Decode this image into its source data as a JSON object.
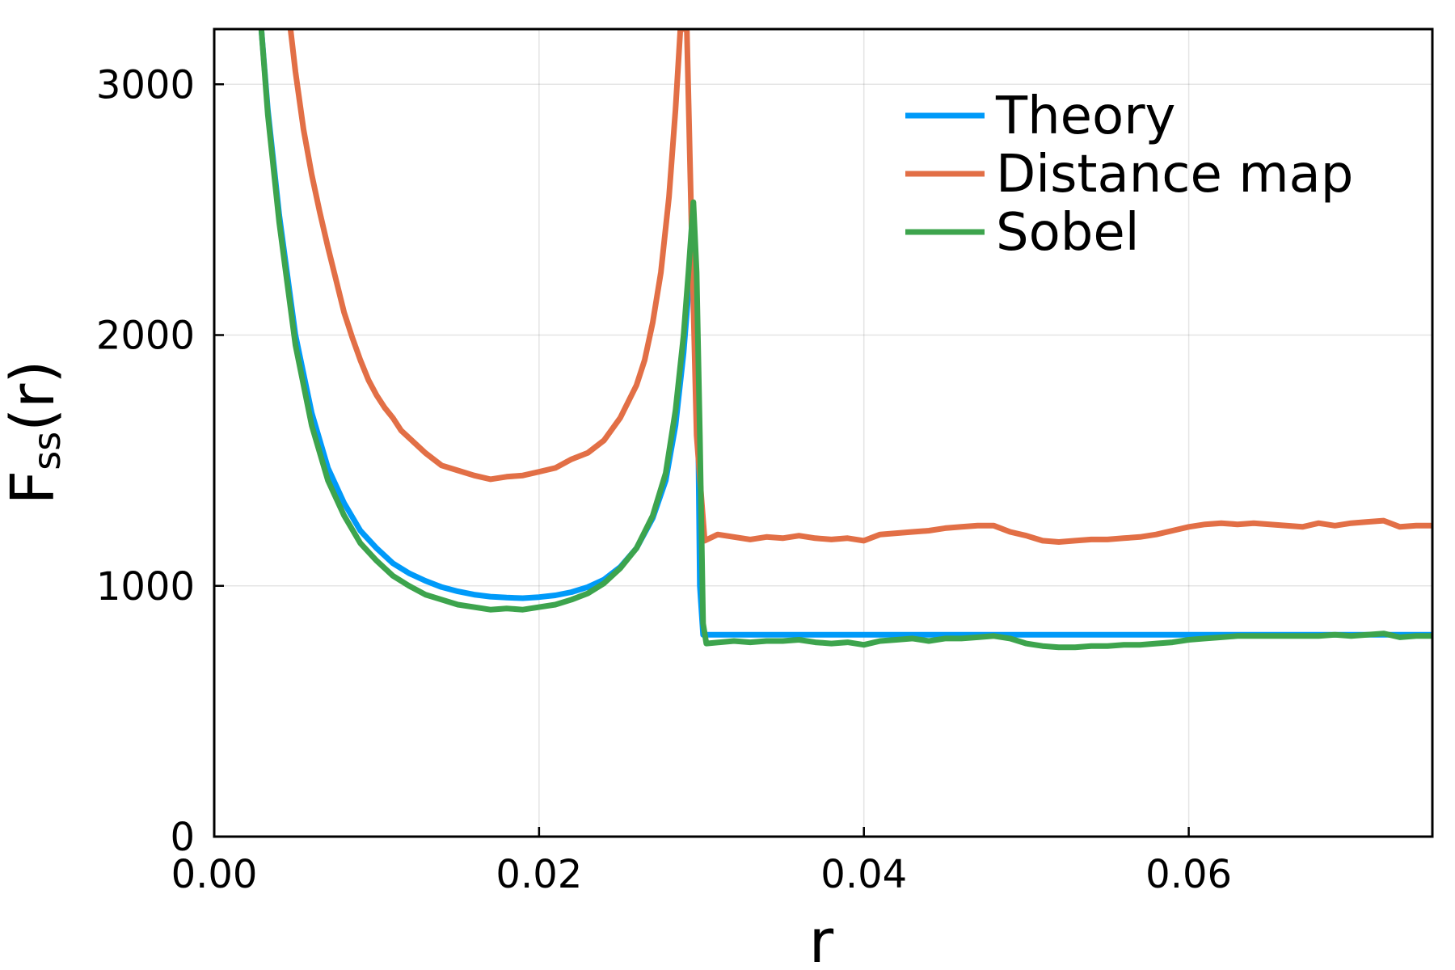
{
  "chart_data": {
    "type": "line",
    "title": "",
    "xlabel": "r",
    "ylabel": "F_ss(r)",
    "ylabel_main": "F",
    "ylabel_sub": "ss",
    "ylabel_tail": "(r)",
    "xlim": [
      0,
      0.075
    ],
    "ylim": [
      0,
      3220
    ],
    "xticks": [
      0,
      0.02,
      0.04,
      0.06
    ],
    "xtick_labels": [
      "0.00",
      "0.02",
      "0.04",
      "0.06"
    ],
    "yticks": [
      0,
      1000,
      2000,
      3000
    ],
    "ytick_labels": [
      "0",
      "1000",
      "2000",
      "3000"
    ],
    "grid": true,
    "legend_position": "top-right",
    "series": [
      {
        "name": "Theory",
        "color": "#009af9",
        "points": [
          [
            0.0029,
            3220
          ],
          [
            0.0033,
            2900
          ],
          [
            0.004,
            2480
          ],
          [
            0.005,
            2000
          ],
          [
            0.006,
            1690
          ],
          [
            0.007,
            1470
          ],
          [
            0.008,
            1330
          ],
          [
            0.009,
            1220
          ],
          [
            0.01,
            1150
          ],
          [
            0.011,
            1090
          ],
          [
            0.012,
            1050
          ],
          [
            0.013,
            1020
          ],
          [
            0.014,
            995
          ],
          [
            0.015,
            978
          ],
          [
            0.016,
            965
          ],
          [
            0.017,
            957
          ],
          [
            0.018,
            953
          ],
          [
            0.019,
            951
          ],
          [
            0.02,
            955
          ],
          [
            0.021,
            962
          ],
          [
            0.022,
            975
          ],
          [
            0.023,
            995
          ],
          [
            0.024,
            1025
          ],
          [
            0.025,
            1075
          ],
          [
            0.026,
            1150
          ],
          [
            0.027,
            1270
          ],
          [
            0.0278,
            1420
          ],
          [
            0.0284,
            1640
          ],
          [
            0.0289,
            1930
          ],
          [
            0.0293,
            2250
          ],
          [
            0.0297,
            2180
          ],
          [
            0.0299,
            1000
          ],
          [
            0.0301,
            805
          ],
          [
            0.035,
            805
          ],
          [
            0.04,
            805
          ],
          [
            0.045,
            805
          ],
          [
            0.05,
            805
          ],
          [
            0.055,
            805
          ],
          [
            0.06,
            805
          ],
          [
            0.065,
            805
          ],
          [
            0.07,
            805
          ],
          [
            0.075,
            805
          ]
        ]
      },
      {
        "name": "Distance map",
        "color": "#e26f46",
        "points": [
          [
            0.0047,
            3220
          ],
          [
            0.005,
            3050
          ],
          [
            0.0055,
            2820
          ],
          [
            0.006,
            2640
          ],
          [
            0.0065,
            2490
          ],
          [
            0.007,
            2350
          ],
          [
            0.0075,
            2220
          ],
          [
            0.008,
            2090
          ],
          [
            0.0085,
            1990
          ],
          [
            0.009,
            1900
          ],
          [
            0.0095,
            1820
          ],
          [
            0.01,
            1760
          ],
          [
            0.0105,
            1710
          ],
          [
            0.011,
            1670
          ],
          [
            0.0115,
            1620
          ],
          [
            0.012,
            1590
          ],
          [
            0.013,
            1530
          ],
          [
            0.014,
            1480
          ],
          [
            0.015,
            1460
          ],
          [
            0.016,
            1440
          ],
          [
            0.017,
            1425
          ],
          [
            0.018,
            1435
          ],
          [
            0.019,
            1440
          ],
          [
            0.02,
            1455
          ],
          [
            0.021,
            1470
          ],
          [
            0.022,
            1505
          ],
          [
            0.023,
            1530
          ],
          [
            0.024,
            1580
          ],
          [
            0.025,
            1670
          ],
          [
            0.026,
            1800
          ],
          [
            0.0265,
            1900
          ],
          [
            0.027,
            2050
          ],
          [
            0.0275,
            2250
          ],
          [
            0.028,
            2550
          ],
          [
            0.0284,
            2900
          ],
          [
            0.0287,
            3220
          ],
          [
            0.0291,
            3220
          ],
          [
            0.0294,
            2400
          ],
          [
            0.0297,
            1600
          ],
          [
            0.0302,
            1180
          ],
          [
            0.031,
            1205
          ],
          [
            0.032,
            1195
          ],
          [
            0.033,
            1185
          ],
          [
            0.034,
            1195
          ],
          [
            0.035,
            1190
          ],
          [
            0.036,
            1200
          ],
          [
            0.037,
            1190
          ],
          [
            0.038,
            1185
          ],
          [
            0.039,
            1190
          ],
          [
            0.04,
            1180
          ],
          [
            0.041,
            1205
          ],
          [
            0.042,
            1210
          ],
          [
            0.043,
            1215
          ],
          [
            0.044,
            1220
          ],
          [
            0.045,
            1230
          ],
          [
            0.046,
            1235
          ],
          [
            0.047,
            1240
          ],
          [
            0.048,
            1240
          ],
          [
            0.049,
            1215
          ],
          [
            0.05,
            1200
          ],
          [
            0.051,
            1180
          ],
          [
            0.052,
            1175
          ],
          [
            0.053,
            1180
          ],
          [
            0.054,
            1185
          ],
          [
            0.055,
            1185
          ],
          [
            0.056,
            1190
          ],
          [
            0.057,
            1195
          ],
          [
            0.058,
            1205
          ],
          [
            0.059,
            1220
          ],
          [
            0.06,
            1235
          ],
          [
            0.061,
            1245
          ],
          [
            0.062,
            1250
          ],
          [
            0.063,
            1245
          ],
          [
            0.064,
            1250
          ],
          [
            0.065,
            1245
          ],
          [
            0.066,
            1240
          ],
          [
            0.067,
            1235
          ],
          [
            0.068,
            1250
          ],
          [
            0.069,
            1240
          ],
          [
            0.07,
            1250
          ],
          [
            0.071,
            1255
          ],
          [
            0.072,
            1260
          ],
          [
            0.073,
            1235
          ],
          [
            0.074,
            1240
          ],
          [
            0.075,
            1240
          ]
        ]
      },
      {
        "name": "Sobel",
        "color": "#3da44d",
        "points": [
          [
            0.0029,
            3220
          ],
          [
            0.0033,
            2880
          ],
          [
            0.004,
            2450
          ],
          [
            0.005,
            1960
          ],
          [
            0.006,
            1640
          ],
          [
            0.007,
            1420
          ],
          [
            0.008,
            1280
          ],
          [
            0.009,
            1170
          ],
          [
            0.01,
            1100
          ],
          [
            0.011,
            1040
          ],
          [
            0.012,
            1000
          ],
          [
            0.013,
            965
          ],
          [
            0.014,
            945
          ],
          [
            0.015,
            925
          ],
          [
            0.016,
            915
          ],
          [
            0.017,
            905
          ],
          [
            0.018,
            910
          ],
          [
            0.019,
            905
          ],
          [
            0.02,
            915
          ],
          [
            0.021,
            925
          ],
          [
            0.022,
            945
          ],
          [
            0.023,
            970
          ],
          [
            0.024,
            1010
          ],
          [
            0.025,
            1070
          ],
          [
            0.026,
            1150
          ],
          [
            0.027,
            1280
          ],
          [
            0.0278,
            1450
          ],
          [
            0.0284,
            1700
          ],
          [
            0.0289,
            2000
          ],
          [
            0.0292,
            2250
          ],
          [
            0.0295,
            2530
          ],
          [
            0.0297,
            2250
          ],
          [
            0.0299,
            1600
          ],
          [
            0.0301,
            850
          ],
          [
            0.0303,
            770
          ],
          [
            0.032,
            780
          ],
          [
            0.033,
            775
          ],
          [
            0.034,
            780
          ],
          [
            0.035,
            780
          ],
          [
            0.036,
            785
          ],
          [
            0.037,
            775
          ],
          [
            0.038,
            770
          ],
          [
            0.039,
            775
          ],
          [
            0.04,
            765
          ],
          [
            0.041,
            780
          ],
          [
            0.042,
            785
          ],
          [
            0.043,
            790
          ],
          [
            0.044,
            780
          ],
          [
            0.045,
            790
          ],
          [
            0.046,
            790
          ],
          [
            0.047,
            795
          ],
          [
            0.048,
            800
          ],
          [
            0.049,
            790
          ],
          [
            0.05,
            770
          ],
          [
            0.051,
            760
          ],
          [
            0.052,
            755
          ],
          [
            0.053,
            755
          ],
          [
            0.054,
            760
          ],
          [
            0.055,
            760
          ],
          [
            0.056,
            765
          ],
          [
            0.057,
            765
          ],
          [
            0.058,
            770
          ],
          [
            0.059,
            775
          ],
          [
            0.06,
            785
          ],
          [
            0.061,
            790
          ],
          [
            0.062,
            795
          ],
          [
            0.063,
            800
          ],
          [
            0.064,
            800
          ],
          [
            0.065,
            800
          ],
          [
            0.066,
            800
          ],
          [
            0.067,
            800
          ],
          [
            0.068,
            800
          ],
          [
            0.069,
            805
          ],
          [
            0.07,
            800
          ],
          [
            0.071,
            805
          ],
          [
            0.072,
            810
          ],
          [
            0.073,
            795
          ],
          [
            0.074,
            800
          ],
          [
            0.075,
            800
          ]
        ]
      }
    ]
  }
}
